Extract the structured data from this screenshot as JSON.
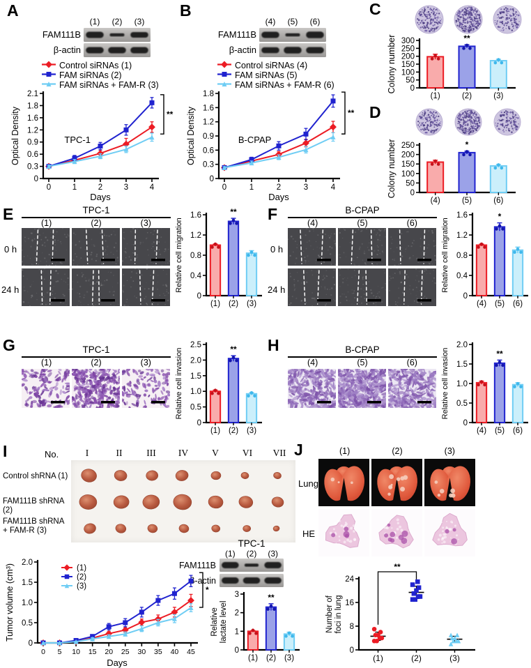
{
  "colors": {
    "red": {
      "stroke": "#ec1c24",
      "fill": "#f9abab",
      "dark": "#c5121b"
    },
    "blue": {
      "stroke": "#2023cf",
      "fill": "#9ba2e8",
      "dark": "#1416ad"
    },
    "cyan": {
      "stroke": "#6fcdf4",
      "fill": "#cbeffb",
      "dark": "#3fb8ec"
    }
  },
  "panels": {
    "A": {
      "letter": "A",
      "blot_rows": [
        "FAM111B",
        "β-actin"
      ],
      "lanes": [
        "(1)",
        "(2)",
        "(3)"
      ],
      "legend": [
        "Control siRNAs (1)",
        "FAM siRNAs (2)",
        "FAM siRNAs + FAM-R (3)"
      ]
    },
    "B": {
      "letter": "B",
      "blot_rows": [
        "FAM111B",
        "β-actin"
      ],
      "lanes": [
        "(4)",
        "(5)",
        "(6)"
      ],
      "legend": [
        "Control siRNAs (4)",
        "FAM siRNAs (5)",
        "FAM siRNAs + FAM-R (6)"
      ]
    },
    "C": {
      "letter": "C"
    },
    "D": {
      "letter": "D"
    },
    "E": {
      "letter": "E",
      "title": "TPC-1",
      "cols": [
        "(1)",
        "(2)",
        "(3)"
      ],
      "rows": [
        "0 h",
        "24 h"
      ]
    },
    "F": {
      "letter": "F",
      "title": "B-CPAP",
      "cols": [
        "(4)",
        "(5)",
        "(6)"
      ],
      "rows": [
        "0 h",
        "24 h"
      ]
    },
    "G": {
      "letter": "G",
      "title": "TPC-1",
      "cols": [
        "(1)",
        "(2)",
        "(3)"
      ]
    },
    "H": {
      "letter": "H",
      "title": "B-CPAP",
      "cols": [
        "(4)",
        "(5)",
        "(6)"
      ]
    },
    "I": {
      "letter": "I",
      "no_label": "No.",
      "numerals": [
        "I",
        "II",
        "III",
        "IV",
        "V",
        "VI",
        "VII"
      ],
      "group_labels": [
        "Control shRNA (1)",
        "FAM111B shRNA (2)",
        "FAM111B shRNA\n+ FAM-R (3)"
      ],
      "blot_title": "TPC-1",
      "blot_lanes": [
        "(1)",
        "(2)",
        "(3)"
      ],
      "blot_rows": [
        "FAM111B",
        "β-actin"
      ]
    },
    "J": {
      "letter": "J",
      "cols": [
        "(1)",
        "(2)",
        "(3)"
      ],
      "rows": [
        "Lung",
        "HE"
      ]
    }
  },
  "chart_data": [
    {
      "id": "A",
      "type": "line",
      "inner_label": "TPC-1",
      "xlabel": "Days",
      "ylabel": "Optical Density",
      "x_ticks": [
        "0",
        "1",
        "2",
        "3",
        "4"
      ],
      "y_ticks": [
        "0",
        "0.3",
        "0.6",
        "0.9",
        "1.2",
        "1.6",
        "1.8",
        "2.1"
      ],
      "ymax": 2.1,
      "sig": "**",
      "series": [
        {
          "name": "Control siRNAs (1)",
          "color": "red",
          "marker": "diamond",
          "values": [
            0.3,
            0.45,
            0.62,
            0.85,
            1.27
          ],
          "errors": [
            0.03,
            0.06,
            0.08,
            0.14,
            0.13
          ]
        },
        {
          "name": "FAM siRNAs (2)",
          "color": "blue",
          "marker": "square",
          "values": [
            0.3,
            0.5,
            0.8,
            1.2,
            1.87
          ],
          "errors": [
            0.03,
            0.07,
            0.09,
            0.13,
            0.13
          ]
        },
        {
          "name": "FAM siRNAs + FAM-R (3)",
          "color": "cyan",
          "marker": "triangle",
          "values": [
            0.3,
            0.42,
            0.55,
            0.72,
            1.02
          ],
          "errors": [
            0.03,
            0.05,
            0.06,
            0.08,
            0.1
          ]
        }
      ]
    },
    {
      "id": "B",
      "type": "line",
      "inner_label": "B-CPAP",
      "xlabel": "Days",
      "ylabel": "Optical Density",
      "x_ticks": [
        "0",
        "1",
        "2",
        "3",
        "4"
      ],
      "y_ticks": [
        "0",
        "0.3",
        "0.6",
        "0.9",
        "1.2",
        "1.6",
        "1.8"
      ],
      "ymax": 1.8,
      "sig": "**",
      "series": [
        {
          "name": "Control siRNAs (4)",
          "color": "red",
          "marker": "diamond",
          "values": [
            0.23,
            0.37,
            0.51,
            0.75,
            1.09
          ],
          "errors": [
            0.02,
            0.04,
            0.06,
            0.08,
            0.12
          ]
        },
        {
          "name": "FAM siRNAs (5)",
          "color": "blue",
          "marker": "square",
          "values": [
            0.23,
            0.4,
            0.69,
            0.94,
            1.64
          ],
          "errors": [
            0.02,
            0.05,
            0.09,
            0.12,
            0.13
          ]
        },
        {
          "name": "FAM siRNAs + FAM-R (6)",
          "color": "cyan",
          "marker": "triangle",
          "values": [
            0.23,
            0.33,
            0.45,
            0.61,
            0.88
          ],
          "errors": [
            0.02,
            0.04,
            0.05,
            0.07,
            0.09
          ]
        }
      ]
    },
    {
      "id": "C",
      "type": "bar",
      "ylabel": "Colony number",
      "categories": [
        "(1)",
        "(2)",
        "(3)"
      ],
      "values": [
        197,
        263,
        172
      ],
      "errors": [
        16,
        10,
        9
      ],
      "y_ticks": [
        "0",
        "50",
        "100",
        "150",
        "200",
        "250",
        "300"
      ],
      "ymax": 300,
      "sig": "**",
      "sig_index": 1
    },
    {
      "id": "D",
      "type": "bar",
      "ylabel": "Colony number",
      "categories": [
        "(4)",
        "(5)",
        "(6)"
      ],
      "values": [
        160,
        210,
        140
      ],
      "errors": [
        10,
        8,
        8
      ],
      "y_ticks": [
        "0",
        "50",
        "100",
        "150",
        "200",
        "250"
      ],
      "ymax": 250,
      "sig": "*",
      "sig_index": 1
    },
    {
      "id": "E",
      "type": "bar",
      "ylabel": "Relative cell migration",
      "categories": [
        "(1)",
        "(2)",
        "(3)"
      ],
      "values": [
        1.0,
        1.47,
        0.84
      ],
      "errors": [
        0.02,
        0.06,
        0.05
      ],
      "y_ticks": [
        "0",
        "0.4",
        "0.8",
        "1.2",
        "1.6"
      ],
      "ymax": 1.6,
      "sig": "**",
      "sig_index": 1
    },
    {
      "id": "F",
      "type": "bar",
      "ylabel": "Relative cell migration",
      "categories": [
        "(4)",
        "(5)",
        "(6)"
      ],
      "values": [
        1.0,
        1.36,
        0.9
      ],
      "errors": [
        0.02,
        0.08,
        0.06
      ],
      "y_ticks": [
        "0",
        "0.4",
        "0.8",
        "1.2",
        "1.6"
      ],
      "ymax": 1.6,
      "sig": "*",
      "sig_index": 1
    },
    {
      "id": "G",
      "type": "bar",
      "ylabel": "Relative cell invasion",
      "categories": [
        "(1)",
        "(2)",
        "(3)"
      ],
      "values": [
        1.0,
        2.05,
        0.92
      ],
      "errors": [
        0.04,
        0.09,
        0.04
      ],
      "y_ticks": [
        "0",
        "0.5",
        "1.0",
        "1.5",
        "2.0",
        "2.5"
      ],
      "ymax": 2.5,
      "sig": "**",
      "sig_index": 1
    },
    {
      "id": "H",
      "type": "bar",
      "ylabel": "Relative cell invasion",
      "categories": [
        "(4)",
        "(5)",
        "(6)"
      ],
      "values": [
        1.02,
        1.52,
        0.97
      ],
      "errors": [
        0.04,
        0.08,
        0.05
      ],
      "y_ticks": [
        "0",
        "0.5",
        "1.0",
        "1.5",
        "2.0"
      ],
      "ymax": 2.0,
      "sig": "**",
      "sig_index": 1
    },
    {
      "id": "IV",
      "type": "line",
      "xlabel": "Days",
      "ylabel": "Tumor volume (cm³)",
      "x_ticks": [
        "0",
        "5",
        "10",
        "15",
        "20",
        "25",
        "30",
        "35",
        "40",
        "45"
      ],
      "y_ticks": [
        "0",
        "0.5",
        "1.0",
        "1.5",
        "2.0"
      ],
      "ymax": 2.0,
      "sig": "*",
      "legend": [
        "(1)",
        "(2)",
        "(3)"
      ],
      "series": [
        {
          "name": "(1)",
          "color": "red",
          "marker": "diamond",
          "values": [
            0,
            0,
            0.03,
            0.12,
            0.23,
            0.32,
            0.51,
            0.59,
            0.76,
            1.05
          ],
          "errors": [
            0,
            0,
            0.01,
            0.03,
            0.05,
            0.06,
            0.08,
            0.1,
            0.12,
            0.15
          ]
        },
        {
          "name": "(2)",
          "color": "blue",
          "marker": "square",
          "values": [
            0,
            0,
            0.06,
            0.16,
            0.4,
            0.5,
            0.76,
            1.05,
            1.22,
            1.53
          ],
          "errors": [
            0,
            0,
            0.02,
            0.04,
            0.08,
            0.1,
            0.12,
            0.12,
            0.14,
            0.14
          ]
        },
        {
          "name": "(3)",
          "color": "cyan",
          "marker": "triangle",
          "values": [
            0,
            0,
            0.03,
            0.1,
            0.16,
            0.22,
            0.35,
            0.5,
            0.6,
            0.87
          ],
          "errors": [
            0,
            0,
            0.01,
            0.03,
            0.04,
            0.05,
            0.07,
            0.08,
            0.1,
            0.1
          ]
        }
      ]
    },
    {
      "id": "IL",
      "type": "bar",
      "ylabel": "Relative\nlactate level",
      "categories": [
        "(1)",
        "(2)",
        "(3)"
      ],
      "values": [
        1.0,
        2.3,
        0.85
      ],
      "errors": [
        0.04,
        0.18,
        0.1
      ],
      "y_ticks": [
        "0",
        "1",
        "2",
        "3"
      ],
      "ymax": 3,
      "sig": "**",
      "sig_index": 1
    },
    {
      "id": "J",
      "type": "scatter",
      "ylabel": "Number of\nfoci in lung",
      "categories": [
        "(1)",
        "(2)",
        "(3)"
      ],
      "y_ticks": [
        "0",
        "8",
        "16",
        "24"
      ],
      "ymax": 24,
      "sig": "**",
      "groups": [
        {
          "marker": "circle",
          "color": "red",
          "values": [
            3,
            3,
            4,
            4,
            5,
            5,
            6,
            7
          ],
          "mean": 4.6,
          "sd": 1.4
        },
        {
          "marker": "square",
          "color": "blue",
          "values": [
            17,
            17,
            18,
            18,
            19,
            20,
            21,
            22,
            23
          ],
          "mean": 19.4,
          "sd": 2.1
        },
        {
          "marker": "triangle",
          "color": "cyan",
          "values": [
            2,
            3,
            3,
            3,
            4,
            4,
            5,
            5
          ],
          "mean": 3.6,
          "sd": 1.0
        }
      ]
    }
  ]
}
